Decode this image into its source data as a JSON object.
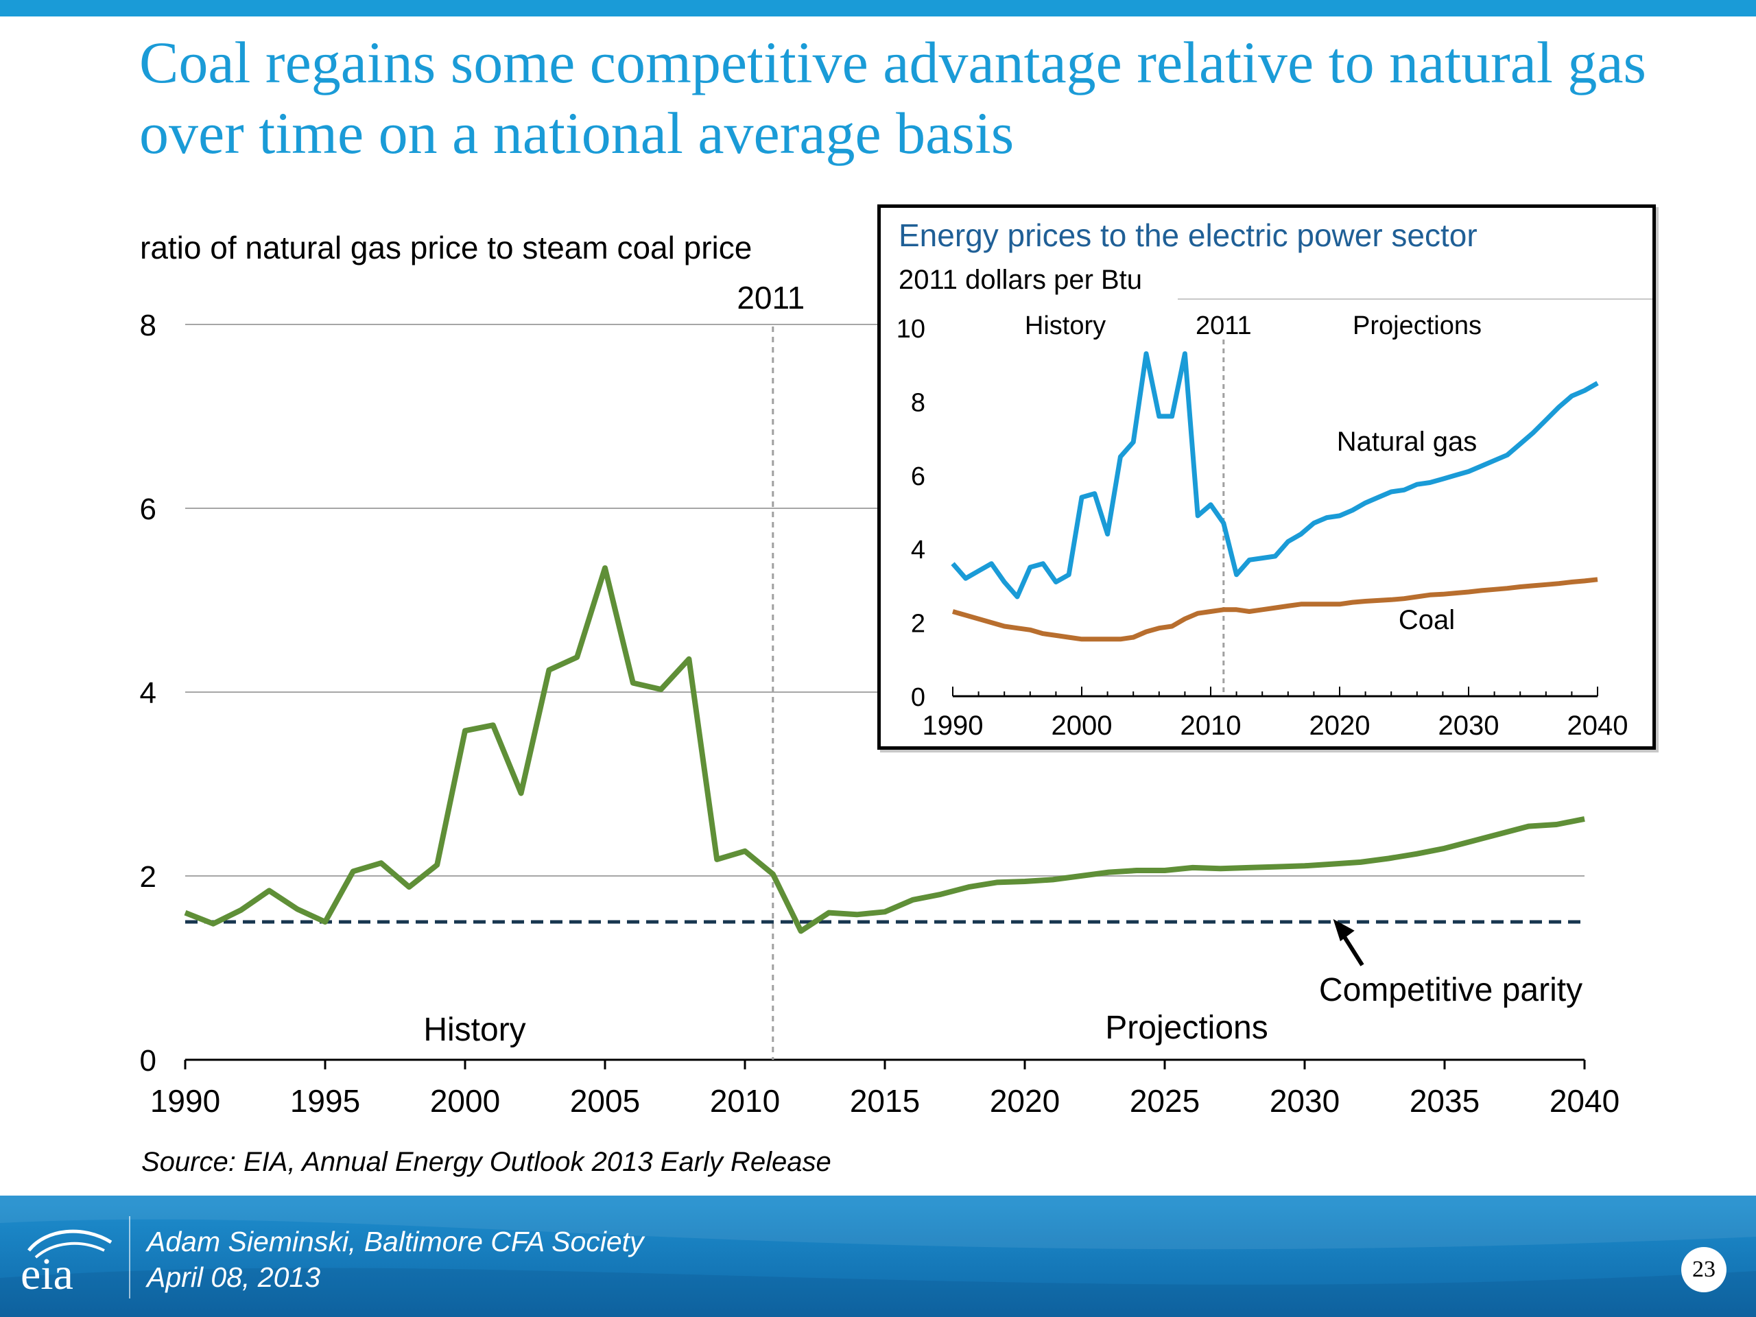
{
  "slide": {
    "title": "Coal regains some competitive advantage relative to natural gas over time on a national average basis",
    "source": "Source:  EIA, Annual Energy Outlook 2013 Early Release",
    "presenter": "Adam Sieminski, Baltimore CFA Society",
    "date": "April 08, 2013",
    "page_number": "23",
    "logo_text": "eia"
  },
  "colors": {
    "title": "#1a9bd7",
    "ratio_line": "#5f8f37",
    "parity_line": "#17364f",
    "gas_line": "#1a9bd7",
    "coal_line": "#b86e2e",
    "inset_title": "#1f5f96",
    "footer": "#1578b8"
  },
  "chart_data": [
    {
      "type": "line",
      "title": "",
      "ylabel": "ratio of natural gas price to steam coal price",
      "xlabel": "",
      "xlim": [
        1990,
        2040
      ],
      "ylim": [
        0,
        8
      ],
      "x_ticks": [
        "1990",
        "1995",
        "2000",
        "2005",
        "2010",
        "2015",
        "2020",
        "2025",
        "2030",
        "2035",
        "2040"
      ],
      "y_ticks": [
        "0",
        "2",
        "4",
        "6",
        "8"
      ],
      "grid": "horizontal",
      "divider": {
        "x": 2011,
        "label": "2011"
      },
      "region_labels": [
        "History",
        "Projections"
      ],
      "series": [
        {
          "values": [
            [
              1990,
              1.6
            ],
            [
              1991,
              1.48
            ],
            [
              1992,
              1.63
            ],
            [
              1993,
              1.84
            ],
            [
              1994,
              1.64
            ],
            [
              1995,
              1.5
            ],
            [
              1996,
              2.05
            ],
            [
              1997,
              2.14
            ],
            [
              1998,
              1.88
            ],
            [
              1999,
              2.12
            ],
            [
              2000,
              3.58
            ],
            [
              2001,
              3.64
            ],
            [
              2002,
              2.9
            ],
            [
              2003,
              4.24
            ],
            [
              2004,
              4.38
            ],
            [
              2005,
              5.35
            ],
            [
              2006,
              4.1
            ],
            [
              2007,
              4.03
            ],
            [
              2008,
              4.36
            ],
            [
              2009,
              2.18
            ],
            [
              2010,
              2.27
            ],
            [
              2011,
              2.02
            ],
            [
              2012,
              1.4
            ],
            [
              2013,
              1.6
            ],
            [
              2014,
              1.58
            ],
            [
              2015,
              1.61
            ],
            [
              2016,
              1.74
            ],
            [
              2017,
              1.8
            ],
            [
              2018,
              1.88
            ],
            [
              2019,
              1.93
            ],
            [
              2020,
              1.94
            ],
            [
              2021,
              1.96
            ],
            [
              2022,
              2.0
            ],
            [
              2023,
              2.04
            ],
            [
              2024,
              2.06
            ],
            [
              2025,
              2.06
            ],
            [
              2026,
              2.09
            ],
            [
              2027,
              2.08
            ],
            [
              2028,
              2.09
            ],
            [
              2029,
              2.1
            ],
            [
              2030,
              2.11
            ],
            [
              2031,
              2.13
            ],
            [
              2032,
              2.15
            ],
            [
              2033,
              2.19
            ],
            [
              2034,
              2.24
            ],
            [
              2035,
              2.3
            ],
            [
              2036,
              2.38
            ],
            [
              2037,
              2.46
            ],
            [
              2038,
              2.54
            ],
            [
              2039,
              2.56
            ],
            [
              2040,
              2.62
            ]
          ]
        }
      ],
      "reference_line": {
        "y": 1.5,
        "label": "Competitive parity"
      }
    },
    {
      "type": "line",
      "title": "Energy prices to the electric power sector",
      "ylabel": "2011 dollars per Btu",
      "xlabel": "",
      "xlim": [
        1990,
        2040
      ],
      "ylim": [
        0,
        10
      ],
      "x_ticks": [
        "1990",
        "2000",
        "2010",
        "2020",
        "2030",
        "2040"
      ],
      "y_ticks": [
        "0",
        "2",
        "4",
        "6",
        "8",
        "10"
      ],
      "grid": "none",
      "divider": {
        "x": 2011,
        "label": "2011"
      },
      "region_labels": [
        "History",
        "Projections"
      ],
      "series": [
        {
          "name": "Natural gas",
          "values": [
            [
              1990,
              3.6
            ],
            [
              1991,
              3.2
            ],
            [
              1992,
              3.4
            ],
            [
              1993,
              3.6
            ],
            [
              1994,
              3.1
            ],
            [
              1995,
              2.7
            ],
            [
              1996,
              3.5
            ],
            [
              1997,
              3.6
            ],
            [
              1998,
              3.1
            ],
            [
              1999,
              3.3
            ],
            [
              2000,
              5.4
            ],
            [
              2001,
              5.5
            ],
            [
              2002,
              4.4
            ],
            [
              2003,
              6.5
            ],
            [
              2004,
              6.9
            ],
            [
              2005,
              9.3
            ],
            [
              2006,
              7.6
            ],
            [
              2007,
              7.6
            ],
            [
              2008,
              9.3
            ],
            [
              2009,
              4.9
            ],
            [
              2010,
              5.2
            ],
            [
              2011,
              4.7
            ],
            [
              2012,
              3.3
            ],
            [
              2013,
              3.7
            ],
            [
              2014,
              3.75
            ],
            [
              2015,
              3.8
            ],
            [
              2016,
              4.2
            ],
            [
              2017,
              4.4
            ],
            [
              2018,
              4.7
            ],
            [
              2019,
              4.85
            ],
            [
              2020,
              4.9
            ],
            [
              2021,
              5.05
            ],
            [
              2022,
              5.25
            ],
            [
              2023,
              5.4
            ],
            [
              2024,
              5.55
            ],
            [
              2025,
              5.6
            ],
            [
              2026,
              5.75
            ],
            [
              2027,
              5.8
            ],
            [
              2028,
              5.9
            ],
            [
              2029,
              6.0
            ],
            [
              2030,
              6.1
            ],
            [
              2031,
              6.25
            ],
            [
              2032,
              6.4
            ],
            [
              2033,
              6.55
            ],
            [
              2034,
              6.85
            ],
            [
              2035,
              7.15
            ],
            [
              2036,
              7.5
            ],
            [
              2037,
              7.85
            ],
            [
              2038,
              8.15
            ],
            [
              2039,
              8.3
            ],
            [
              2040,
              8.5
            ]
          ]
        },
        {
          "name": "Coal",
          "values": [
            [
              1990,
              2.3
            ],
            [
              1991,
              2.2
            ],
            [
              1992,
              2.1
            ],
            [
              1993,
              2.0
            ],
            [
              1994,
              1.9
            ],
            [
              1995,
              1.85
            ],
            [
              1996,
              1.8
            ],
            [
              1997,
              1.7
            ],
            [
              1998,
              1.65
            ],
            [
              1999,
              1.6
            ],
            [
              2000,
              1.55
            ],
            [
              2001,
              1.55
            ],
            [
              2002,
              1.55
            ],
            [
              2003,
              1.55
            ],
            [
              2004,
              1.6
            ],
            [
              2005,
              1.75
            ],
            [
              2006,
              1.85
            ],
            [
              2007,
              1.9
            ],
            [
              2008,
              2.1
            ],
            [
              2009,
              2.25
            ],
            [
              2010,
              2.3
            ],
            [
              2011,
              2.35
            ],
            [
              2012,
              2.35
            ],
            [
              2013,
              2.3
            ],
            [
              2014,
              2.35
            ],
            [
              2015,
              2.4
            ],
            [
              2016,
              2.45
            ],
            [
              2017,
              2.5
            ],
            [
              2018,
              2.5
            ],
            [
              2019,
              2.5
            ],
            [
              2020,
              2.5
            ],
            [
              2021,
              2.55
            ],
            [
              2022,
              2.58
            ],
            [
              2023,
              2.6
            ],
            [
              2024,
              2.62
            ],
            [
              2025,
              2.65
            ],
            [
              2026,
              2.7
            ],
            [
              2027,
              2.75
            ],
            [
              2028,
              2.77
            ],
            [
              2029,
              2.8
            ],
            [
              2030,
              2.83
            ],
            [
              2031,
              2.87
            ],
            [
              2032,
              2.9
            ],
            [
              2033,
              2.93
            ],
            [
              2034,
              2.97
            ],
            [
              2035,
              3.0
            ],
            [
              2036,
              3.03
            ],
            [
              2037,
              3.06
            ],
            [
              2038,
              3.1
            ],
            [
              2039,
              3.13
            ],
            [
              2040,
              3.17
            ]
          ]
        }
      ]
    }
  ]
}
